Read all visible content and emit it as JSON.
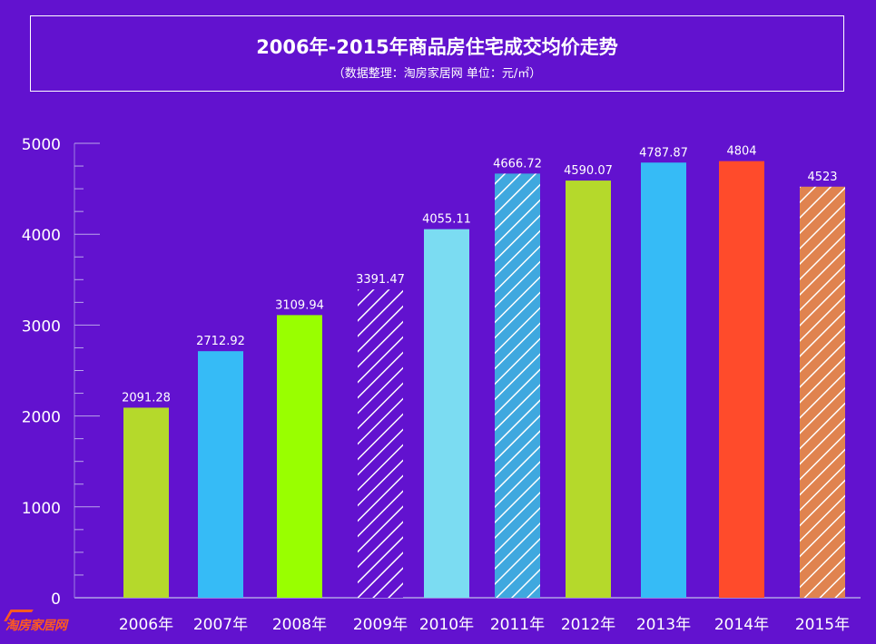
{
  "chart_data": {
    "type": "bar",
    "title": "2006年-2015年商品房住宅成交均价走势",
    "subtitle": "（数据整理：淘房家居网 单位：元/㎡）",
    "categories": [
      "2006年",
      "2007年",
      "2008年",
      "2009年",
      "2010年",
      "2011年",
      "2012年",
      "2013年",
      "2014年",
      "2015年"
    ],
    "values": [
      2091.28,
      2712.92,
      3109.94,
      3391.47,
      4055.11,
      4666.72,
      4590.07,
      4787.87,
      4804,
      4523
    ],
    "value_labels": [
      "2091.28",
      "2712.92",
      "3109.94",
      "3391.47",
      "4055.11",
      "4666.72",
      "4590.07",
      "4787.87",
      "4804",
      "4523"
    ],
    "bar_colors": [
      "#b5d92b",
      "#36bbf6",
      "#99ff00",
      "#6212cf",
      "#7bdcf2",
      "#3fa8df",
      "#b5d92b",
      "#36bbf6",
      "#ff4b2b",
      "#e0834f"
    ],
    "bar_hatched": [
      false,
      false,
      false,
      true,
      false,
      true,
      false,
      false,
      false,
      true
    ],
    "yticks": [
      0,
      1000,
      2000,
      3000,
      4000,
      5000
    ],
    "ylim": [
      0,
      5000
    ],
    "grid": false
  },
  "logo": {
    "text": "淘房家居网"
  }
}
